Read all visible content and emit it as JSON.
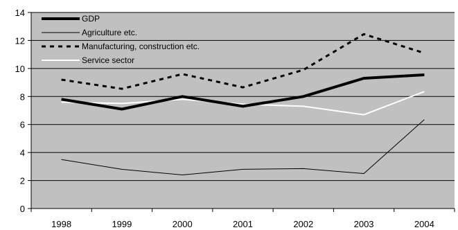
{
  "chart_data": {
    "type": "line",
    "title": "",
    "xlabel": "",
    "ylabel": "",
    "x": [
      "1998",
      "1999",
      "2000",
      "2001",
      "2002",
      "2003",
      "2004"
    ],
    "ylim": [
      0,
      14
    ],
    "yticks": [
      0,
      2,
      4,
      6,
      8,
      10,
      12,
      14
    ],
    "grid": true,
    "legend_position": "top-left",
    "plot_background": "#c0c0c0",
    "gridline_color": "#000000",
    "series": [
      {
        "name": "GDP",
        "style": "thick-solid",
        "color": "#000000",
        "values": [
          7.8,
          7.1,
          8.0,
          7.3,
          8.0,
          9.3,
          9.55
        ]
      },
      {
        "name": "Agriculture etc.",
        "style": "thin-solid",
        "color": "#000000",
        "values": [
          3.5,
          2.8,
          2.4,
          2.8,
          2.85,
          2.5,
          6.35
        ]
      },
      {
        "name": "Manufacturing, construction etc.",
        "style": "dashed",
        "color": "#000000",
        "values": [
          9.2,
          8.55,
          9.6,
          8.65,
          9.9,
          12.45,
          11.1
        ]
      },
      {
        "name": "Service sector",
        "style": "white-solid",
        "color": "#ffffff",
        "values": [
          7.6,
          7.5,
          7.8,
          7.45,
          7.3,
          6.7,
          8.35
        ]
      }
    ]
  }
}
